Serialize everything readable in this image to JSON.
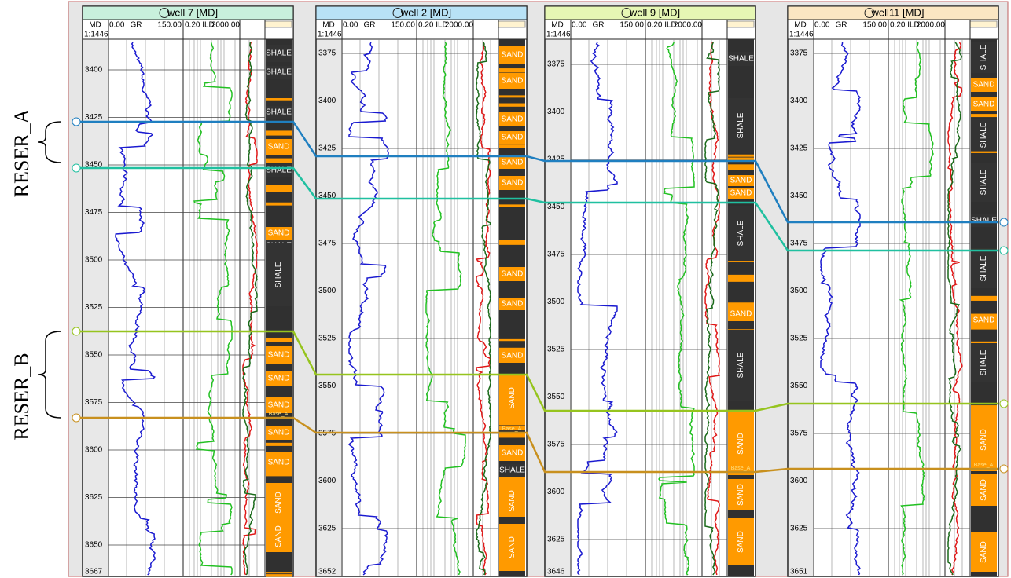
{
  "left_labels": [
    "RESER_A",
    "RESER_B"
  ],
  "track_header": {
    "md": "MD",
    "gr_min": "0.00",
    "gr": "GR",
    "gr_max": "150.00",
    "ild_min": "0.20",
    "ild": "ILD",
    "ild_max": "2000.00"
  },
  "scale": "1:1446",
  "wells": [
    {
      "title": "well 7 [MD]",
      "ticks": [
        3400,
        3425,
        3450,
        3475,
        3500,
        3525,
        3550,
        3575,
        3600,
        3625,
        3650
      ],
      "bottom": 3667,
      "marker": "Base_A",
      "lith": [
        "SHALE",
        "SHALE",
        "SHALE",
        "SAND",
        "SHALE",
        "SAND",
        "SHALE",
        "SHALE",
        "SAND",
        "SAND",
        "SAND",
        "SAND",
        "SAND",
        "SAND",
        "SAND"
      ]
    },
    {
      "title": "well 2 [MD]",
      "ticks": [
        3375,
        3400,
        3425,
        3450,
        3475,
        3500,
        3525,
        3550,
        3575,
        3600,
        3625
      ],
      "bottom": 3652,
      "marker": "Base_A",
      "lith": [
        "SAND",
        "SAND",
        "SAND",
        "SAND",
        "SAND",
        "SAND",
        "SAND",
        "SAND",
        "SAND",
        "SAND",
        "SAND",
        "SHALE",
        "SAND",
        "SAND"
      ]
    },
    {
      "title": "well 9 [MD]",
      "ticks": [
        3375,
        3400,
        3425,
        3450,
        3475,
        3500,
        3525,
        3550,
        3575,
        3600,
        3625
      ],
      "bottom": 3646,
      "marker": "Base_A",
      "lith": [
        "SHALE",
        "SHALE",
        "SAND",
        "SAND",
        "SHALE",
        "SAND",
        "SHALE",
        "SAND",
        "SAND",
        "SAND"
      ]
    },
    {
      "title": "well11 [MD]",
      "ticks": [
        3375,
        3400,
        3425,
        3450,
        3475,
        3500,
        3525,
        3550,
        3575,
        3600,
        3625
      ],
      "bottom": 3651,
      "marker": "Base_A",
      "lith": [
        "SHALE",
        "SAND",
        "SAND",
        "SHALE",
        "SHALE",
        "SHALE",
        "SHALE",
        "SAND",
        "SHALE",
        "SAND",
        "SAND",
        "SAND"
      ]
    }
  ]
}
